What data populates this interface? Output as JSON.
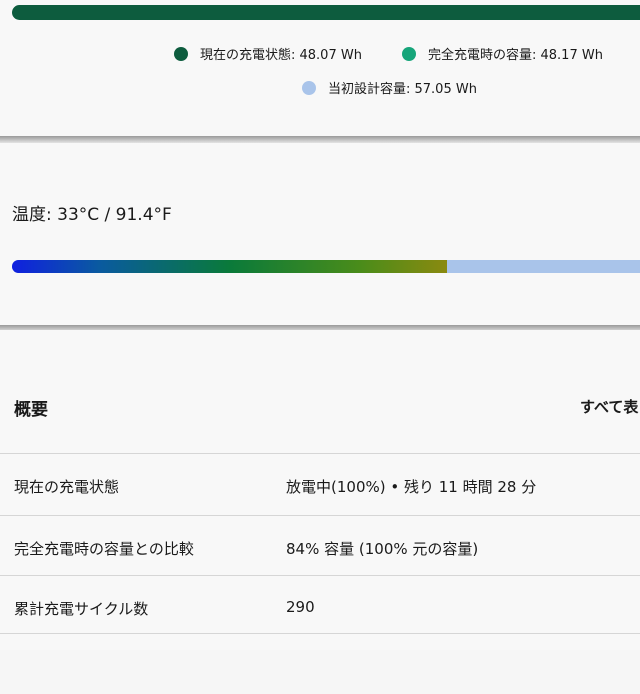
{
  "capacity": {
    "current_fraction": 0.8426,
    "legend": [
      {
        "label": "現在の充電状態: 48.07 Wh",
        "color": "#0d5c3e"
      },
      {
        "label": "完全充電時の容量: 48.17 Wh",
        "color": "#16a57a"
      },
      {
        "label": "当初設計容量: 57.05 Wh",
        "color": "#a9c4ea"
      }
    ]
  },
  "temperature": {
    "label": "温度:  33°C / 91.4°F",
    "fraction": 0.68
  },
  "overview": {
    "title": "概要",
    "show_all": "すべて表",
    "rows": [
      {
        "key": "現在の充電状態",
        "value": "放電中(100%)  •  残り 11 時間 28 分"
      },
      {
        "key": "完全充電時の容量との比較",
        "value": "84% 容量 (100% 元の容量)"
      },
      {
        "key": "累計充電サイクル数",
        "value": "290"
      }
    ]
  }
}
